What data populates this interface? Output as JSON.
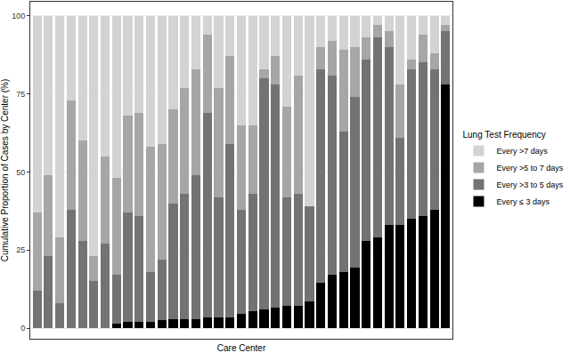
{
  "chart_data": {
    "type": "bar",
    "stacked": true,
    "x_label": "Care Center",
    "y_label": "Cumulative Proportion of Cases by Center (%)",
    "legend_title": "Lung Test Frequency",
    "legend": "right",
    "grid": true,
    "tick_labels": "y",
    "ylim": [
      -3.4,
      104.5
    ],
    "yticks": [
      0,
      25,
      50,
      75,
      100
    ],
    "categories": [
      null,
      null,
      null,
      null,
      null,
      null,
      null,
      null,
      null,
      null,
      null,
      null,
      null,
      null,
      null,
      null,
      null,
      null,
      null,
      null,
      null,
      null,
      null,
      null,
      null,
      null,
      null,
      null,
      null,
      null,
      null,
      null,
      null,
      null,
      null,
      null,
      null
    ],
    "series": [
      {
        "name": "Every ≤ 3 days",
        "color": "#000000",
        "values": [
          0,
          0,
          0,
          0,
          0,
          0,
          0,
          1.5,
          2,
          2,
          2,
          2.5,
          3,
          3,
          3,
          3.5,
          3.5,
          3.5,
          4.5,
          5.5,
          6,
          6.5,
          7,
          7,
          8.5,
          14.5,
          17,
          18,
          19.5,
          28,
          29,
          33,
          33,
          35,
          36,
          38,
          78
        ]
      },
      {
        "name": "Every >3 to 5 days",
        "color": "#737373",
        "values": [
          12,
          23,
          8,
          38,
          28,
          15,
          27,
          15.5,
          35,
          34,
          16,
          19.5,
          37,
          40,
          46,
          65.5,
          38.5,
          55.5,
          33.5,
          37.5,
          74,
          71.5,
          35,
          36,
          30.5,
          68.5,
          64,
          45,
          54.5,
          58,
          64,
          57,
          28,
          48,
          49,
          45,
          17
        ]
      },
      {
        "name": "Every >5 to 7 days",
        "color": "#a6a6a6",
        "values": [
          25,
          26,
          21,
          35,
          32,
          8,
          28,
          31,
          31,
          33,
          40,
          37,
          30,
          34,
          34,
          25,
          35,
          28,
          27,
          22,
          3,
          9,
          29,
          38,
          0,
          7,
          11,
          26,
          16,
          7,
          4,
          5,
          17,
          3,
          9,
          5,
          2
        ]
      },
      {
        "name": "Every >7 days",
        "color": "#d3d3d3",
        "values": [
          63,
          51,
          71,
          27,
          40,
          77,
          45,
          52,
          32,
          31,
          42,
          41,
          30,
          23,
          17,
          6,
          23,
          13,
          35,
          35,
          17,
          13,
          29,
          19,
          61,
          10,
          8,
          11,
          10,
          7,
          3,
          5,
          22,
          14,
          6,
          12,
          3
        ]
      }
    ]
  }
}
